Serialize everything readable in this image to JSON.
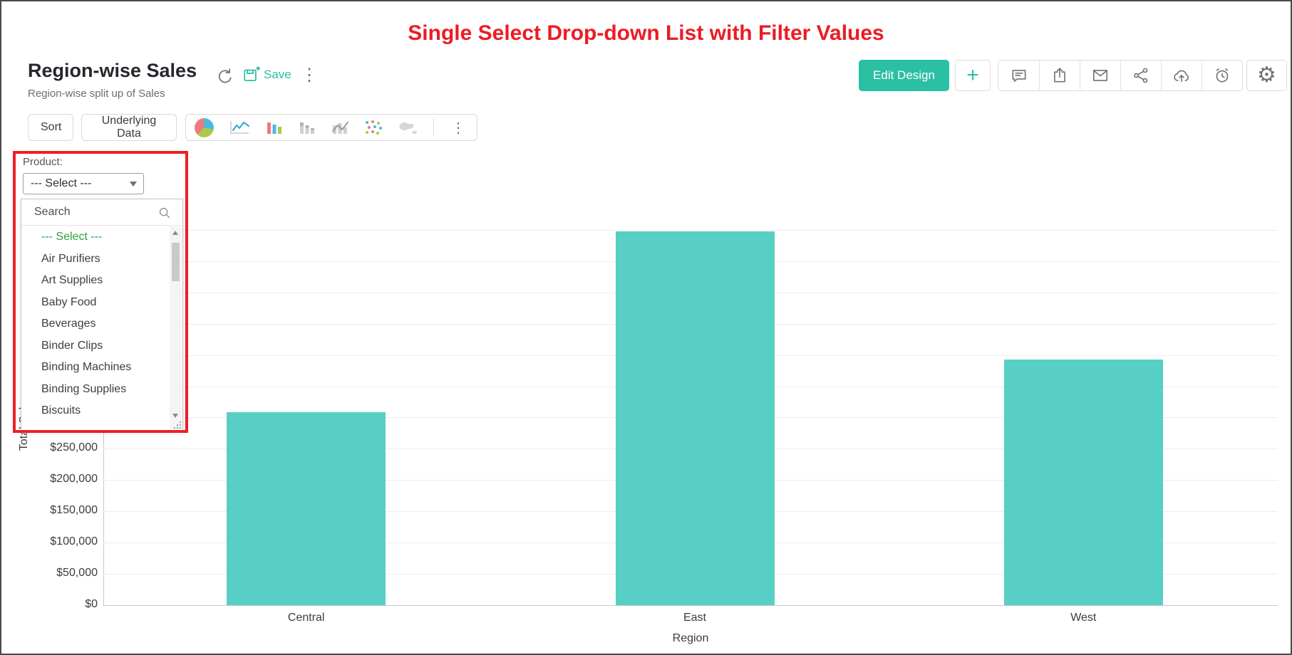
{
  "annotation": {
    "title": "Single Select Drop-down List with Filter Values",
    "color": "#ed1b24"
  },
  "header": {
    "title": "Region-wise Sales",
    "subtitle": "Region-wise split up of Sales",
    "save_label": "Save",
    "icons": [
      "refresh-icon",
      "save-icon",
      "more-vertical-icon"
    ]
  },
  "actions": {
    "edit_design_label": "Edit Design",
    "plus_label": "+",
    "icons": [
      "plus-icon",
      "comment-icon",
      "export-icon",
      "email-icon",
      "share-icon",
      "cloud-upload-icon",
      "alarm-icon",
      "gear-icon"
    ],
    "accent_teal": "#2bbfa4"
  },
  "toolbar": {
    "sort_label": "Sort",
    "underlying_data_label": "Underlying Data",
    "chart_type_icons": [
      "pie-chart-icon",
      "line-chart-icon",
      "bar-chart-icon",
      "stacked-bar-chart-icon",
      "combo-chart-icon",
      "scatter-chart-icon",
      "map-chart-icon",
      "more-vertical-icon"
    ]
  },
  "filter": {
    "label": "Product:",
    "selected_value": "--- Select ---",
    "search_placeholder": "Search",
    "options": [
      "--- Select ---",
      "Air Purifiers",
      "Art Supplies",
      "Baby Food",
      "Beverages",
      "Binder Clips",
      "Binding Machines",
      "Binding Supplies",
      "Biscuits"
    ],
    "selected_option_color": "#2aa33e"
  },
  "chart_data": {
    "type": "bar",
    "title": "",
    "categories": [
      "Central",
      "East",
      "West"
    ],
    "values": [
      309000,
      598000,
      393000
    ],
    "xlabel": "Region",
    "ylabel": "Total Sales",
    "ylim": [
      0,
      650000
    ],
    "ytick_step": 50000,
    "ytick_prefix": "$",
    "visible_yticks": [
      "$0",
      "$50,000",
      "$100,000",
      "$150,000",
      "$200,000",
      "$250,000"
    ],
    "grid": true,
    "legend": false,
    "bar_color": "#57cfc4"
  }
}
